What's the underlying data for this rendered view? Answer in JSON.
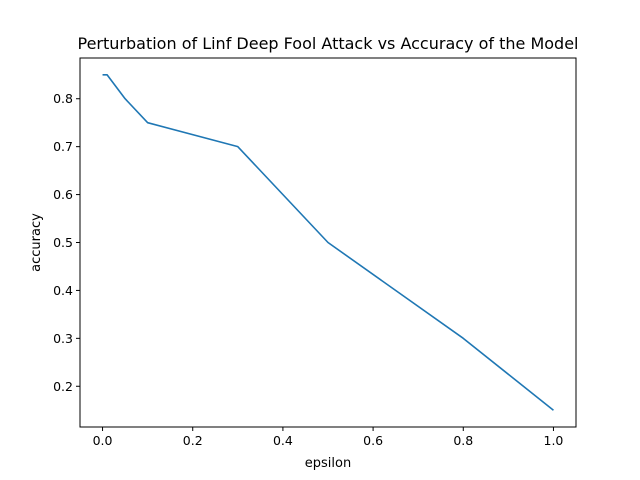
{
  "chart_data": {
    "type": "line",
    "title": "Perturbation of Linf Deep Fool Attack vs Accuracy of the Model",
    "xlabel": "epsilon",
    "ylabel": "accuracy",
    "xlim": [
      -0.05,
      1.05
    ],
    "ylim": [
      0.115,
      0.885
    ],
    "x_ticks": [
      "0.0",
      "0.2",
      "0.4",
      "0.6",
      "0.8",
      "1.0"
    ],
    "y_ticks": [
      "0.2",
      "0.3",
      "0.4",
      "0.5",
      "0.6",
      "0.7",
      "0.8"
    ],
    "grid": false,
    "series": [
      {
        "color": "#1f77b4",
        "x": [
          0.0,
          0.01,
          0.05,
          0.1,
          0.3,
          0.5,
          0.8,
          1.0
        ],
        "y": [
          0.85,
          0.85,
          0.8,
          0.75,
          0.7,
          0.5,
          0.3,
          0.15
        ]
      }
    ]
  }
}
